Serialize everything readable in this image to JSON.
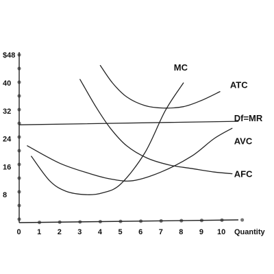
{
  "chart_data": {
    "type": "line",
    "title": "",
    "xlabel": "Quantity",
    "ylabel": "",
    "xlim": [
      0,
      10.8
    ],
    "ylim": [
      0,
      48
    ],
    "grid": false,
    "x_ticks": [
      "0",
      "1",
      "2",
      "3",
      "4",
      "5",
      "6",
      "7",
      "8",
      "9",
      "10"
    ],
    "y_ticks": [
      {
        "value": 8,
        "label": "8"
      },
      {
        "value": 16,
        "label": "16"
      },
      {
        "value": 24,
        "label": "24"
      },
      {
        "value": 32,
        "label": "32"
      },
      {
        "value": 40,
        "label": "40"
      },
      {
        "value": 48,
        "label": "$48"
      }
    ],
    "series": [
      {
        "name": "MC",
        "label_at": [
          8.1,
          43.5
        ],
        "points": [
          [
            0.6,
            19
          ],
          [
            1.5,
            12
          ],
          [
            2.3,
            9
          ],
          [
            3.3,
            8
          ],
          [
            4.1,
            8.5
          ],
          [
            5,
            11
          ],
          [
            6.2,
            20
          ],
          [
            7.2,
            32
          ],
          [
            8.1,
            40
          ]
        ]
      },
      {
        "name": "ATC",
        "label_at": [
          10.4,
          38.5
        ],
        "points": [
          [
            4,
            45
          ],
          [
            4.6,
            40
          ],
          [
            5.3,
            36
          ],
          [
            6.2,
            33.5
          ],
          [
            7.1,
            32.8
          ],
          [
            8.1,
            33.2
          ],
          [
            9,
            35
          ],
          [
            9.9,
            37.5
          ]
        ]
      },
      {
        "name": "Df=MR",
        "label_at": [
          10.6,
          29
        ],
        "points": [
          [
            0,
            28
          ],
          [
            10.8,
            29
          ]
        ]
      },
      {
        "name": "AVC",
        "label_at": [
          10.6,
          22.5
        ],
        "points": [
          [
            0.4,
            22
          ],
          [
            2,
            17
          ],
          [
            3.5,
            14
          ],
          [
            4.5,
            12.5
          ],
          [
            5.6,
            12
          ],
          [
            7,
            14.5
          ],
          [
            8.5,
            19
          ],
          [
            9.6,
            24
          ],
          [
            10.5,
            27
          ]
        ]
      },
      {
        "name": "AFC",
        "label_at": [
          10.6,
          13
        ],
        "points": [
          [
            3,
            41
          ],
          [
            3.8,
            33
          ],
          [
            4.5,
            27
          ],
          [
            5.3,
            22
          ],
          [
            6.3,
            18.5
          ],
          [
            7.4,
            16.5
          ],
          [
            8.5,
            15.5
          ],
          [
            9.6,
            14.5
          ],
          [
            10.5,
            14
          ]
        ]
      }
    ]
  }
}
